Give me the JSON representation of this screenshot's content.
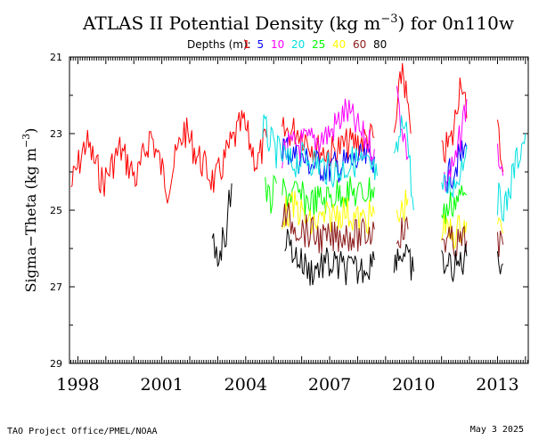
{
  "chart_data": {
    "type": "line",
    "title": "ATLAS II Potential Density (kg m",
    "title_sup": "−3",
    "title_end": ") for 0n110w",
    "legend_label": "Depths (m):",
    "ylabel": "Sigma−Theta (kg m",
    "ylabel_sup": "−3",
    "ylabel_end": ")",
    "ylim": [
      29,
      21
    ],
    "yticks": [
      "21",
      "23",
      "25",
      "27",
      "29"
    ],
    "xlim": [
      1997.7,
      2014.1
    ],
    "xticks": [
      "1998",
      "2001",
      "2004",
      "2007",
      "2010",
      "2013"
    ],
    "series": [
      {
        "name": "1",
        "color": "#ff0000",
        "segments": [
          {
            "x": [
              1997.75,
              1998.3,
              1998.9,
              1999.5,
              2000.1,
              2000.6,
              2001.2,
              2001.8,
              2002.3,
              2002.9,
              2003.4,
              2003.9,
              2004.4,
              2004.75
            ],
            "y": [
              24.4,
              23.2,
              24.3,
              23.4,
              24.2,
              23.0,
              24.4,
              22.9,
              23.6,
              24.3,
              23.4,
              22.7,
              23.8,
              23.1
            ]
          },
          {
            "x": [
              2005.3,
              2005.9,
              2006.5,
              2007.0,
              2007.6,
              2008.1,
              2008.6
            ],
            "y": [
              23.0,
              22.9,
              23.4,
              23.5,
              23.3,
              23.2,
              23.1
            ]
          },
          {
            "x": [
              2009.3,
              2009.6,
              2009.9
            ],
            "y": [
              23.2,
              21.2,
              23.0
            ]
          },
          {
            "x": [
              2011.0,
              2011.4,
              2011.7,
              2011.9
            ],
            "y": [
              23.6,
              23.1,
              21.4,
              22.6
            ]
          },
          {
            "x": [
              2013.0,
              2013.2
            ],
            "y": [
              22.9,
              24.0
            ]
          }
        ]
      },
      {
        "name": "5",
        "color": "#0000ff",
        "segments": [
          {
            "x": [
              2005.3,
              2005.8,
              2006.4,
              2007.0,
              2007.6,
              2008.2,
              2008.6
            ],
            "y": [
              23.3,
              23.6,
              23.8,
              23.9,
              23.8,
              23.7,
              23.6
            ]
          },
          {
            "x": [
              2011.2,
              2011.6,
              2011.9
            ],
            "y": [
              24.2,
              23.7,
              23.4
            ]
          }
        ]
      },
      {
        "name": "10",
        "color": "#ff00ff",
        "segments": [
          {
            "x": [
              2005.3,
              2005.8,
              2006.4,
              2007.0,
              2007.6,
              2008.2,
              2008.6
            ],
            "y": [
              23.5,
              23.3,
              23.2,
              23.0,
              22.4,
              23.1,
              23.4
            ]
          },
          {
            "x": [
              2009.4,
              2009.8
            ],
            "y": [
              22.0,
              23.6
            ]
          },
          {
            "x": [
              2011.1,
              2011.5,
              2011.9
            ],
            "y": [
              24.3,
              23.8,
              22.1
            ]
          },
          {
            "x": [
              2013.0,
              2013.2
            ],
            "y": [
              23.5,
              24.1
            ]
          }
        ]
      },
      {
        "name": "20",
        "color": "#00e0e0",
        "segments": [
          {
            "x": [
              2004.6,
              2005.0,
              2005.6,
              2006.2,
              2006.8,
              2007.3,
              2007.9,
              2008.4,
              2008.7
            ],
            "y": [
              22.8,
              23.4,
              23.8,
              23.6,
              23.9,
              24.0,
              23.7,
              23.9,
              24.1
            ]
          },
          {
            "x": [
              2009.3,
              2009.7,
              2010.0
            ],
            "y": [
              23.9,
              22.4,
              25.0
            ]
          },
          {
            "x": [
              2011.0,
              2011.5,
              2011.9
            ],
            "y": [
              24.5,
              24.3,
              23.3
            ]
          },
          {
            "x": [
              2013.0,
              2013.3,
              2013.6,
              2014.0
            ],
            "y": [
              24.7,
              24.9,
              23.9,
              23.0
            ]
          }
        ]
      },
      {
        "name": "25",
        "color": "#00ff00",
        "segments": [
          {
            "x": [
              2004.7,
              2004.9,
              2005.1
            ],
            "y": [
              24.5,
              24.8,
              24.3
            ]
          },
          {
            "x": [
              2005.3,
              2005.8,
              2006.3,
              2006.9,
              2007.5,
              2008.1,
              2008.6
            ],
            "y": [
              24.5,
              24.6,
              24.8,
              24.7,
              24.5,
              24.6,
              24.4
            ]
          },
          {
            "x": [
              2011.0,
              2011.5,
              2011.9
            ],
            "y": [
              25.2,
              24.7,
              24.6
            ]
          }
        ]
      },
      {
        "name": "40",
        "color": "#ffff00",
        "segments": [
          {
            "x": [
              2005.3,
              2005.8,
              2006.3,
              2006.9,
              2007.5,
              2008.1,
              2008.6
            ],
            "y": [
              25.1,
              24.9,
              25.4,
              25.2,
              25.0,
              25.3,
              25.1
            ]
          },
          {
            "x": [
              2009.4,
              2009.8
            ],
            "y": [
              25.3,
              24.7
            ]
          },
          {
            "x": [
              2011.0,
              2011.5,
              2011.9
            ],
            "y": [
              25.5,
              25.6,
              25.3
            ]
          },
          {
            "x": [
              2013.0,
              2013.2
            ],
            "y": [
              25.4,
              25.6
            ]
          }
        ]
      },
      {
        "name": "60",
        "color": "#8b1a1a",
        "segments": [
          {
            "x": [
              2005.3,
              2005.8,
              2006.3,
              2006.9,
              2007.5,
              2008.1,
              2008.6
            ],
            "y": [
              25.1,
              25.4,
              25.6,
              25.8,
              25.6,
              25.7,
              25.5
            ]
          },
          {
            "x": [
              2009.4,
              2009.8
            ],
            "y": [
              25.6,
              25.5
            ]
          },
          {
            "x": [
              2011.0,
              2011.5,
              2011.9
            ],
            "y": [
              25.7,
              25.9,
              25.8
            ]
          },
          {
            "x": [
              2013.0,
              2013.2
            ],
            "y": [
              25.8,
              25.9
            ]
          }
        ]
      },
      {
        "name": "80",
        "color": "#000000",
        "segments": [
          {
            "x": [
              2002.8,
              2003.0,
              2003.3,
              2003.5
            ],
            "y": [
              26.0,
              26.2,
              25.5,
              24.3
            ]
          },
          {
            "x": [
              2005.4,
              2005.8,
              2006.3,
              2006.8,
              2007.4,
              2008.0,
              2008.6
            ],
            "y": [
              25.7,
              26.2,
              26.6,
              26.4,
              26.5,
              26.6,
              26.3
            ]
          },
          {
            "x": [
              2009.3,
              2009.6,
              2010.0
            ],
            "y": [
              26.2,
              26.1,
              26.6
            ]
          },
          {
            "x": [
              2011.0,
              2011.5,
              2011.9
            ],
            "y": [
              26.4,
              26.5,
              26.2
            ]
          },
          {
            "x": [
              2013.0,
              2013.2
            ],
            "y": [
              26.1,
              26.4
            ]
          }
        ]
      }
    ]
  },
  "footer": {
    "left": "TAO Project Office/PMEL/NOAA",
    "right": "May  3 2025"
  }
}
